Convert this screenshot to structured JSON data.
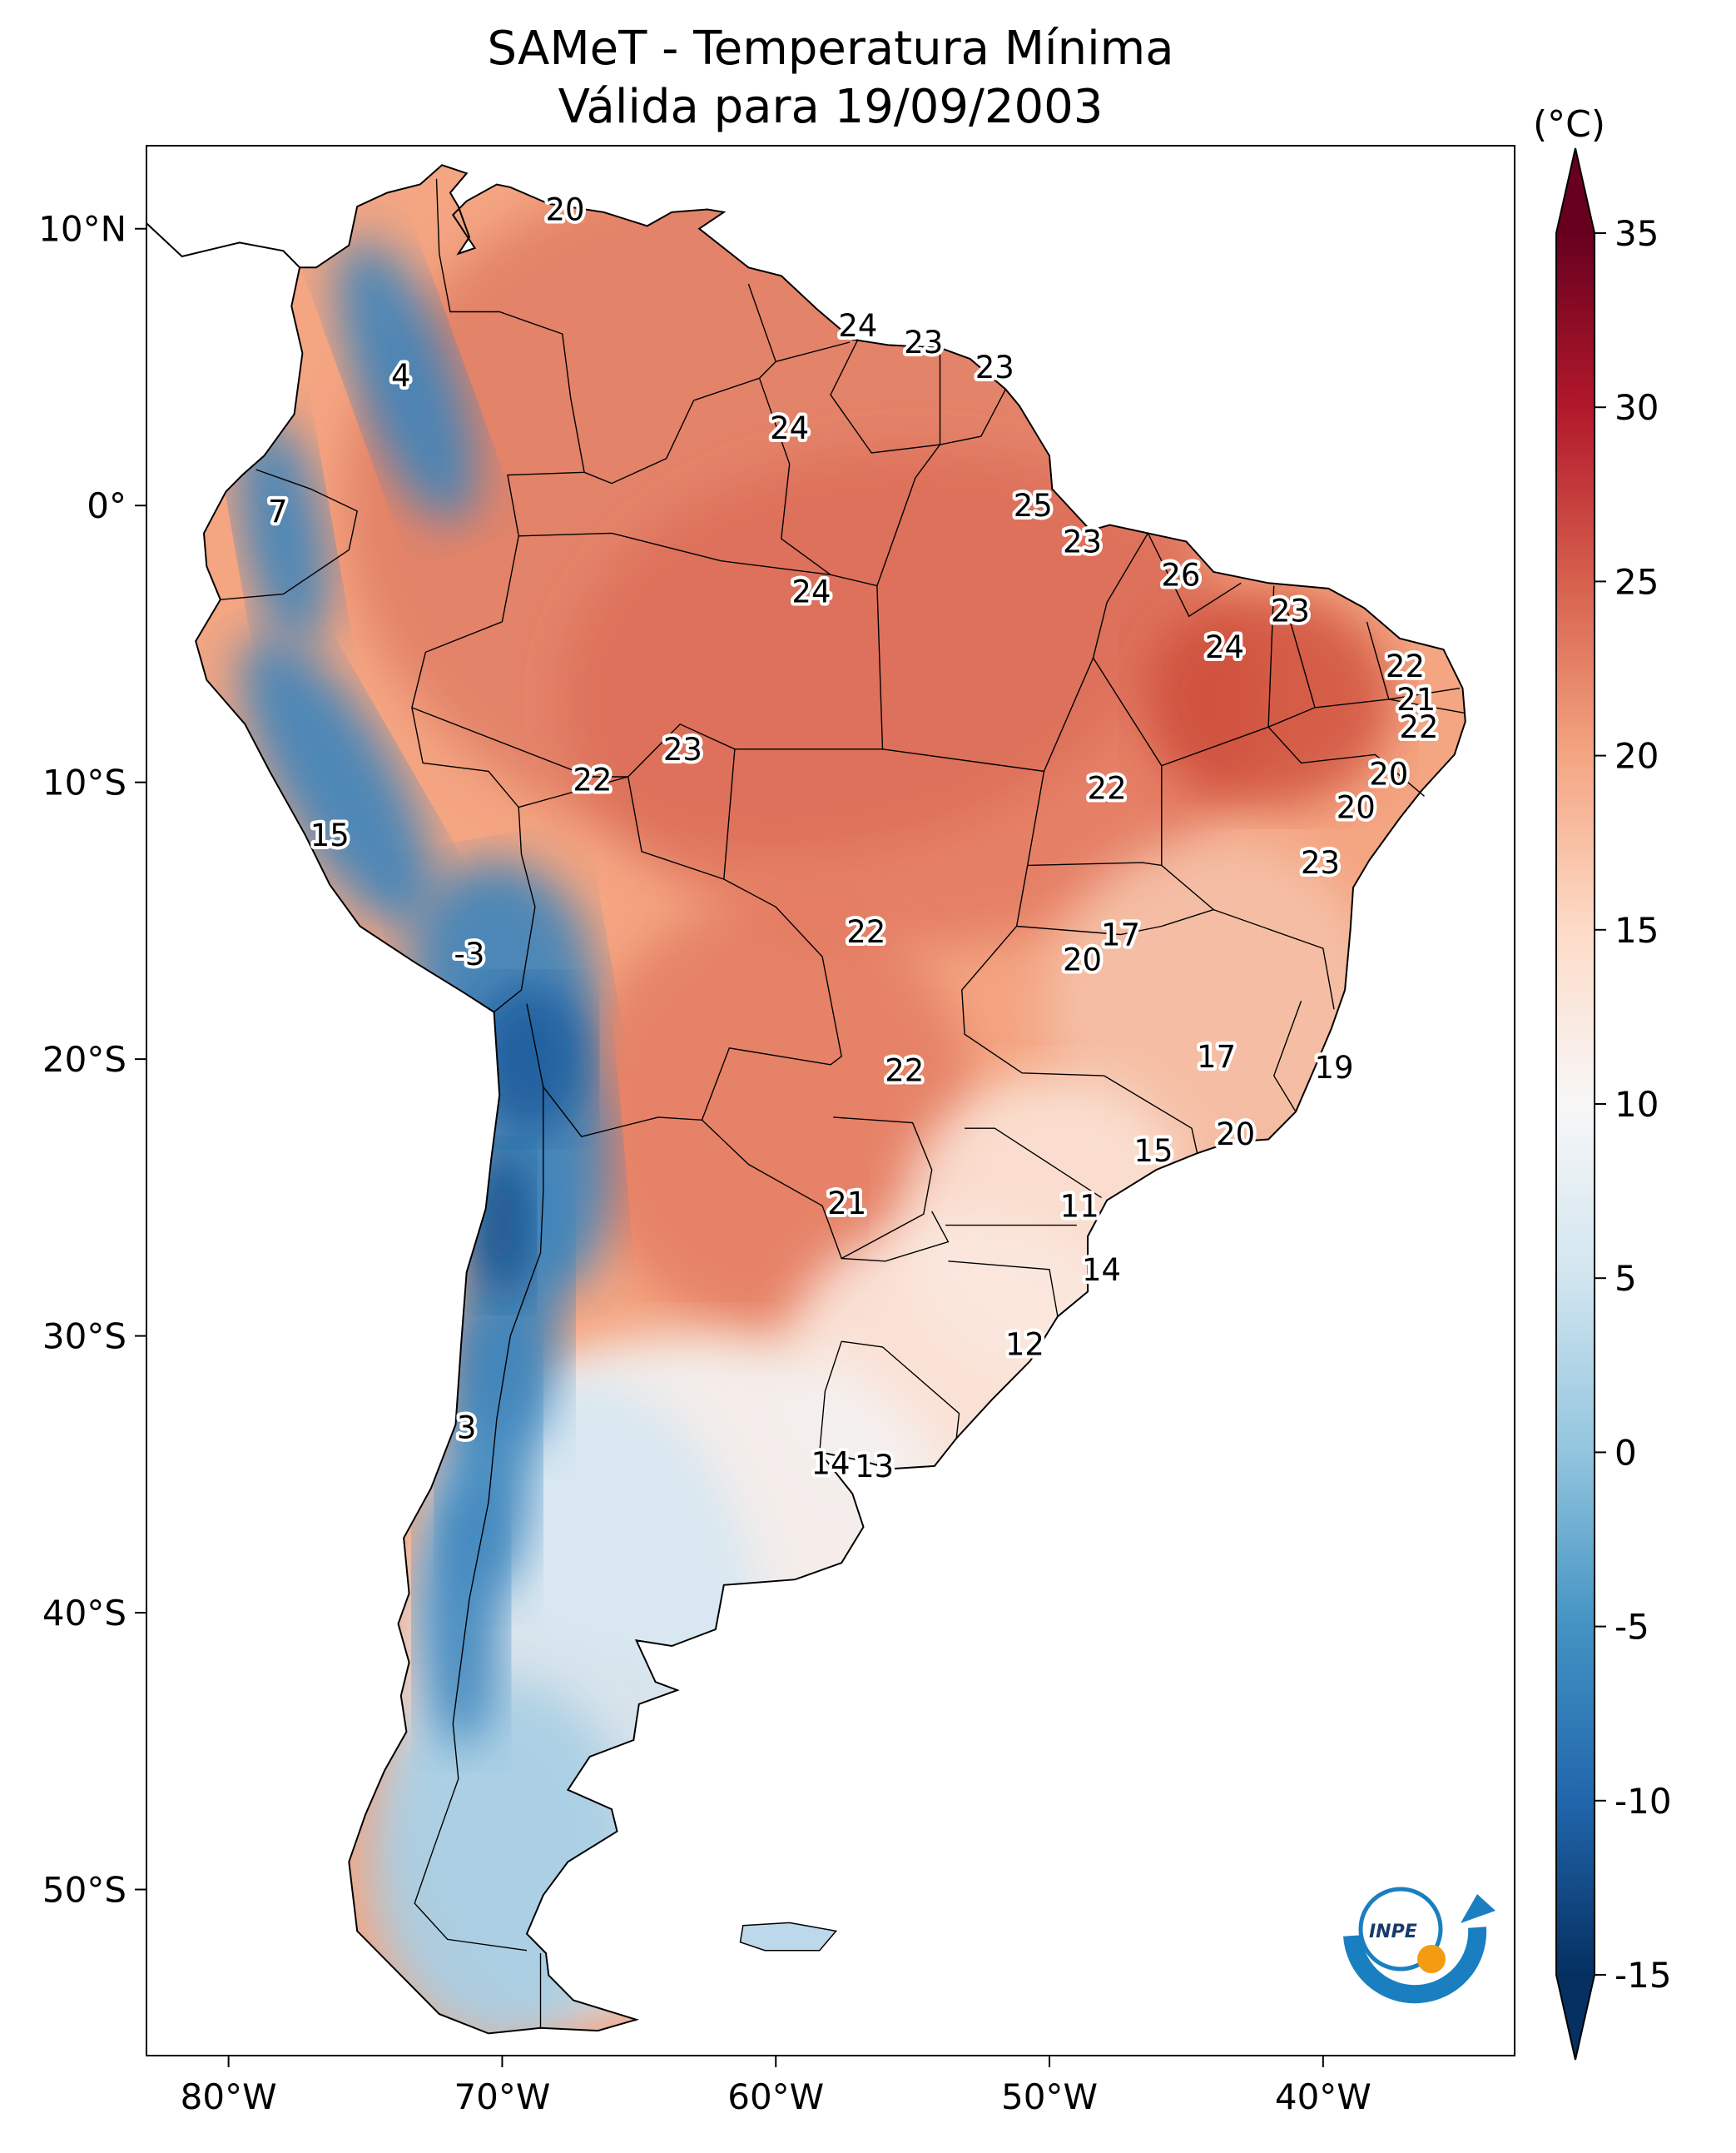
{
  "title": {
    "line1": "SAMeT - Temperatura Mínima",
    "line2": "Válida para 19/09/2003"
  },
  "map": {
    "lon_range": [
      -83,
      -33
    ],
    "lat_range": [
      -56,
      13
    ],
    "x_ticks": [
      {
        "value": -80,
        "label": "80°W"
      },
      {
        "value": -70,
        "label": "70°W"
      },
      {
        "value": -60,
        "label": "60°W"
      },
      {
        "value": -50,
        "label": "50°W"
      },
      {
        "value": -40,
        "label": "40°W"
      }
    ],
    "y_ticks": [
      {
        "value": 10,
        "label": "10°N"
      },
      {
        "value": 0,
        "label": "0°"
      },
      {
        "value": -10,
        "label": "10°S"
      },
      {
        "value": -20,
        "label": "20°S"
      },
      {
        "value": -30,
        "label": "30°S"
      },
      {
        "value": -40,
        "label": "40°S"
      },
      {
        "value": -50,
        "label": "50°S"
      }
    ],
    "labels": [
      {
        "lon": -67.7,
        "lat": 10.7,
        "text": "20"
      },
      {
        "lon": -57.0,
        "lat": 6.5,
        "text": "24"
      },
      {
        "lon": -54.6,
        "lat": 5.9,
        "text": "23"
      },
      {
        "lon": -52.0,
        "lat": 5.0,
        "text": "23"
      },
      {
        "lon": -73.7,
        "lat": 4.7,
        "text": "4"
      },
      {
        "lon": -59.5,
        "lat": 2.8,
        "text": "24"
      },
      {
        "lon": -78.2,
        "lat": -0.2,
        "text": "7"
      },
      {
        "lon": -50.6,
        "lat": 0.0,
        "text": "25"
      },
      {
        "lon": -48.8,
        "lat": -1.3,
        "text": "23"
      },
      {
        "lon": -45.2,
        "lat": -2.5,
        "text": "26"
      },
      {
        "lon": -58.7,
        "lat": -3.1,
        "text": "24"
      },
      {
        "lon": -41.2,
        "lat": -3.8,
        "text": "23"
      },
      {
        "lon": -43.6,
        "lat": -5.1,
        "text": "24"
      },
      {
        "lon": -37.0,
        "lat": -5.8,
        "text": "22"
      },
      {
        "lon": -36.6,
        "lat": -7.0,
        "text": "21"
      },
      {
        "lon": -36.5,
        "lat": -8.0,
        "text": "22"
      },
      {
        "lon": -37.6,
        "lat": -9.7,
        "text": "20"
      },
      {
        "lon": -38.8,
        "lat": -10.9,
        "text": "20"
      },
      {
        "lon": -63.4,
        "lat": -8.8,
        "text": "23"
      },
      {
        "lon": -66.7,
        "lat": -9.9,
        "text": "22"
      },
      {
        "lon": -47.9,
        "lat": -10.2,
        "text": "22"
      },
      {
        "lon": -76.3,
        "lat": -11.9,
        "text": "15"
      },
      {
        "lon": -40.1,
        "lat": -12.9,
        "text": "23"
      },
      {
        "lon": -47.4,
        "lat": -15.5,
        "text": "17"
      },
      {
        "lon": -56.7,
        "lat": -15.4,
        "text": "22"
      },
      {
        "lon": -71.2,
        "lat": -16.2,
        "text": "-3"
      },
      {
        "lon": -48.8,
        "lat": -16.4,
        "text": "20"
      },
      {
        "lon": -55.3,
        "lat": -20.4,
        "text": "22"
      },
      {
        "lon": -43.9,
        "lat": -19.9,
        "text": "17"
      },
      {
        "lon": -39.6,
        "lat": -20.3,
        "text": "19"
      },
      {
        "lon": -43.2,
        "lat": -22.7,
        "text": "20"
      },
      {
        "lon": -46.2,
        "lat": -23.3,
        "text": "15"
      },
      {
        "lon": -57.4,
        "lat": -25.2,
        "text": "21"
      },
      {
        "lon": -48.9,
        "lat": -25.3,
        "text": "11"
      },
      {
        "lon": -48.1,
        "lat": -27.6,
        "text": "14"
      },
      {
        "lon": -50.9,
        "lat": -30.3,
        "text": "12"
      },
      {
        "lon": -71.3,
        "lat": -33.3,
        "text": "3"
      },
      {
        "lon": -58.0,
        "lat": -34.6,
        "text": "14"
      },
      {
        "lon": -56.4,
        "lat": -34.7,
        "text": "13"
      }
    ]
  },
  "colorbar": {
    "unit": "(°C)",
    "range": [
      -15,
      35
    ],
    "ticks": [
      {
        "value": 35,
        "label": "35"
      },
      {
        "value": 30,
        "label": "30"
      },
      {
        "value": 25,
        "label": "25"
      },
      {
        "value": 20,
        "label": "20"
      },
      {
        "value": 15,
        "label": "15"
      },
      {
        "value": 10,
        "label": "10"
      },
      {
        "value": 5,
        "label": "5"
      },
      {
        "value": 0,
        "label": "0"
      },
      {
        "value": -5,
        "label": "-5"
      },
      {
        "value": -10,
        "label": "-10"
      },
      {
        "value": -15,
        "label": "-15"
      }
    ],
    "colors": [
      "#053061",
      "#2166ac",
      "#4393c3",
      "#92c5de",
      "#d1e5f0",
      "#f7f7f7",
      "#fddbc7",
      "#f4a582",
      "#d6604d",
      "#b2182b",
      "#67001f"
    ]
  },
  "logo": {
    "text": "INPE",
    "ring_color": "#1a7fc1",
    "dot_color": "#f39c12"
  }
}
